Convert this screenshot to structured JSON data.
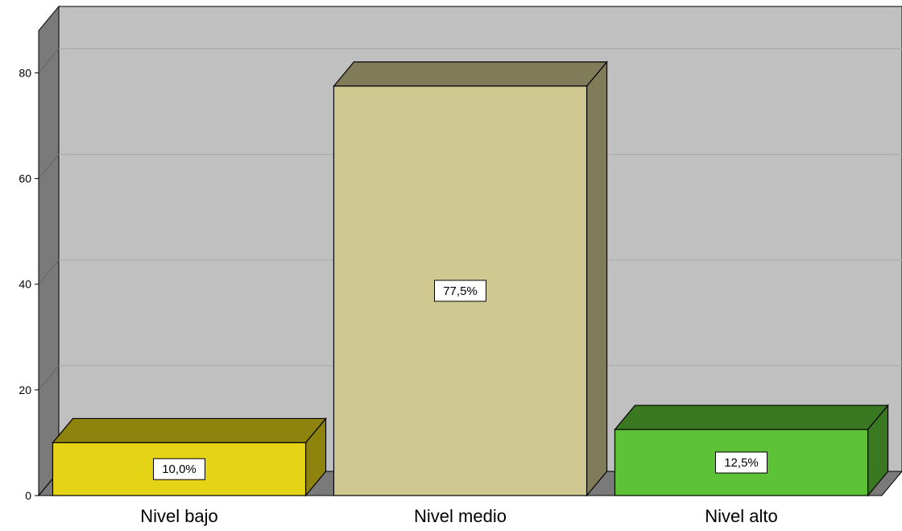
{
  "chart_data": {
    "type": "bar",
    "categories": [
      "Nivel bajo",
      "Nivel medio",
      "Nivel alto"
    ],
    "values": [
      10.0,
      77.5,
      12.5
    ],
    "data_labels": [
      "10,0%",
      "77,5%",
      "12,5%"
    ],
    "title": "",
    "xlabel": "",
    "ylabel": "",
    "ylim": [
      0,
      88
    ],
    "yticks": [
      0,
      20,
      40,
      60,
      80
    ],
    "ytick_labels": [
      "0",
      "20",
      "40",
      "60",
      "80"
    ],
    "grid": true,
    "style": "3d",
    "colors": {
      "bars": [
        "#e4d415",
        "#cfc890",
        "#5dc235"
      ],
      "background": "#c0c0c0",
      "wall": "#7a7a7a",
      "floor": "#7a7a7a",
      "gridline": "#a8a8a8"
    }
  }
}
